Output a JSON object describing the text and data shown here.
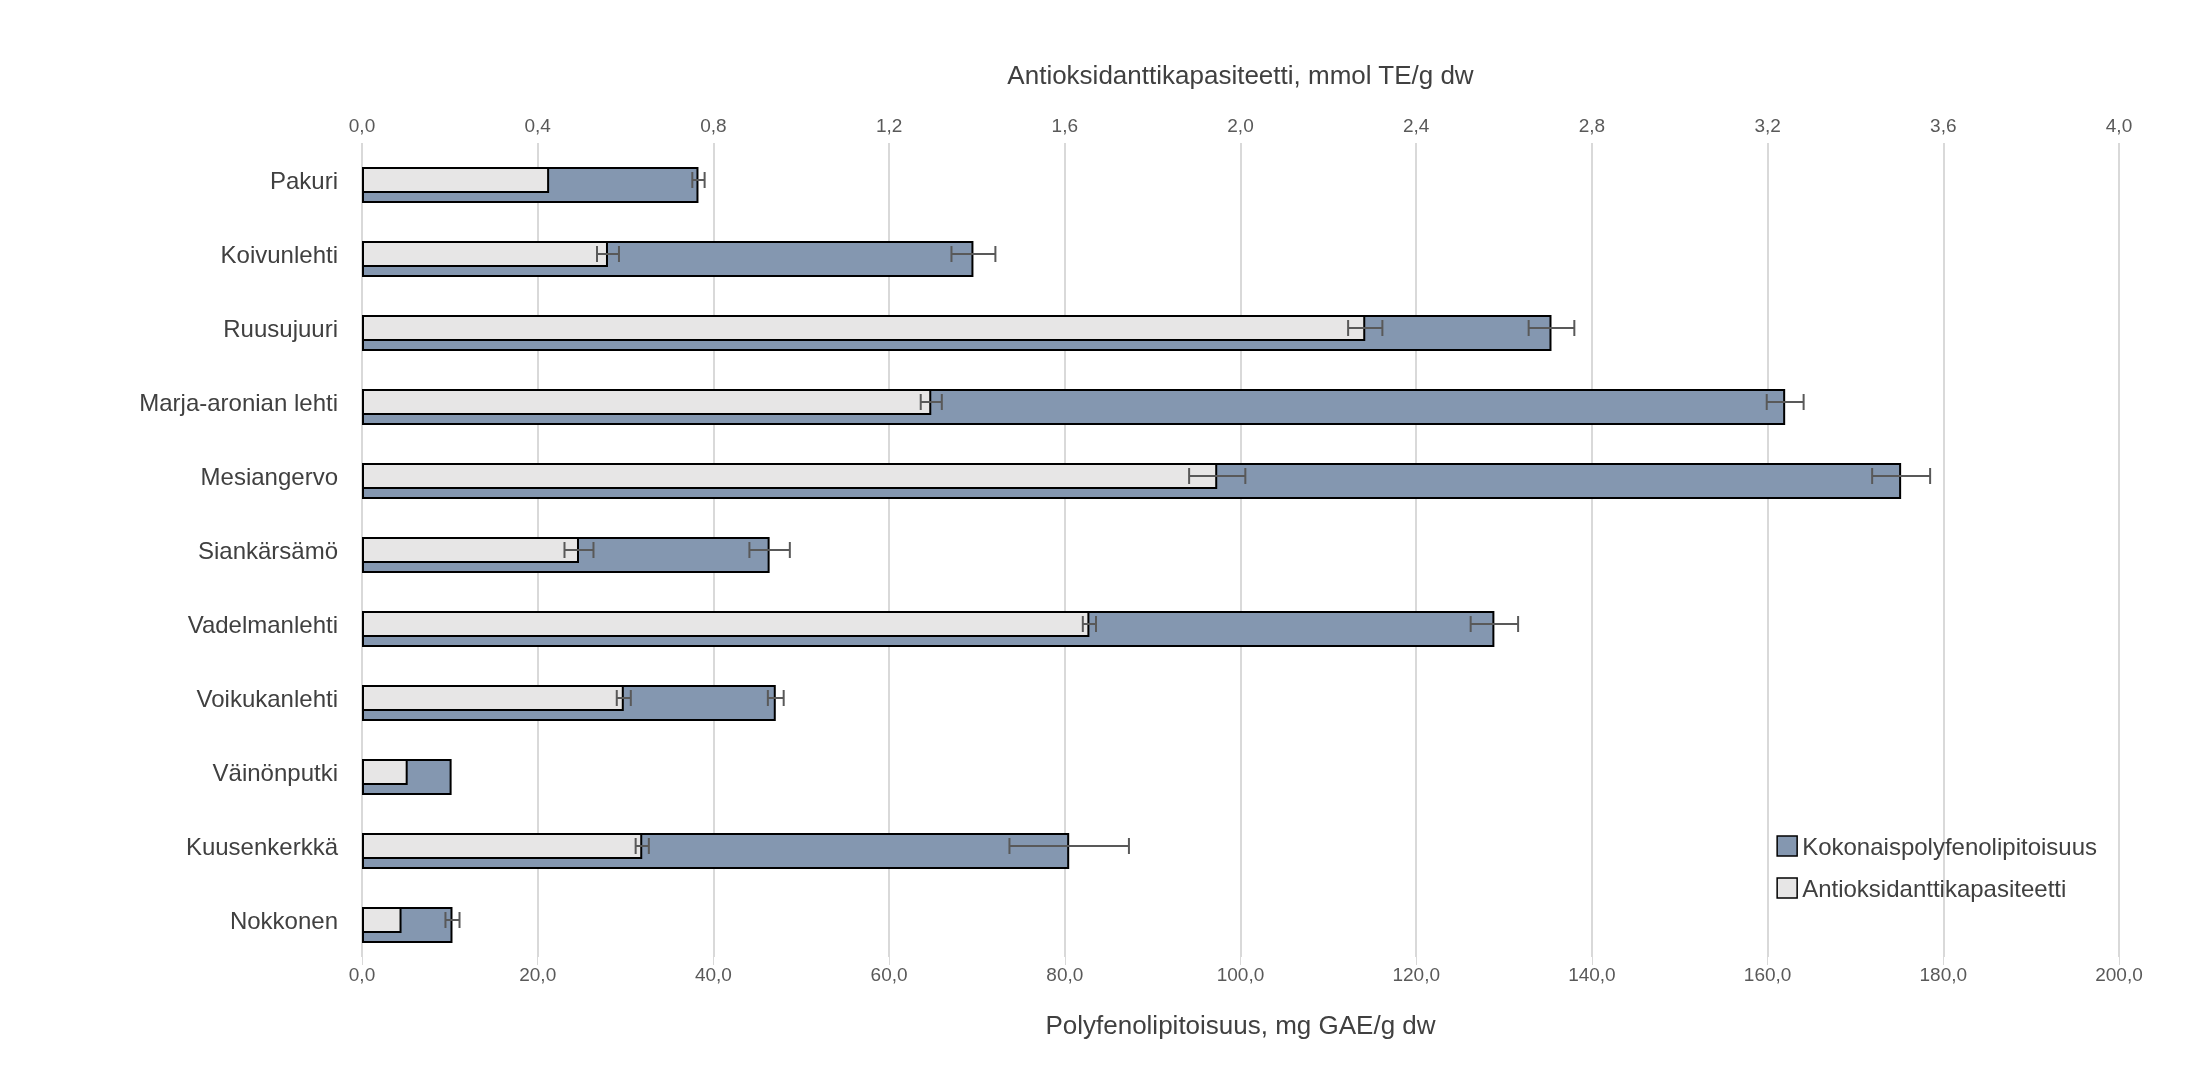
{
  "chart_data": {
    "type": "bar",
    "orientation": "horizontal",
    "xlabel": "Polyfenolipitoisuus, mg GAE/g dw",
    "x2label": "Antioksidanttikapasiteetti, mmol TE/g dw",
    "categories": [
      "Pakuri",
      "Koivunlehti",
      "Ruusujuuri",
      "Marja-aronian lehti",
      "Mesiangervo",
      "Siankärsämö",
      "Vadelmanlehti",
      "Voikukanlehti",
      "Väinönputki",
      "Kuusenkerkkä",
      "Nokkonen"
    ],
    "series": [
      {
        "name": "Kokonaispolyfenolipitoisuus",
        "color": "#8497b0",
        "values": [
          38.3,
          69.6,
          135.4,
          162.0,
          175.2,
          46.4,
          128.9,
          47.1,
          10.2,
          80.5,
          10.3
        ],
        "errors": [
          0.7,
          2.5,
          2.6,
          2.1,
          3.3,
          2.3,
          2.7,
          0.9,
          null,
          6.8,
          0.8
        ]
      },
      {
        "name": "Antioksidanttikapasiteetti",
        "color": "#e7e6e6",
        "axis": "x2",
        "values": [
          0.426,
          0.56,
          2.284,
          1.296,
          1.947,
          0.494,
          1.656,
          0.596,
          0.104,
          0.638,
          0.09
        ],
        "errors": [
          null,
          0.025,
          0.039,
          0.024,
          0.064,
          0.033,
          0.015,
          0.016,
          null,
          0.015,
          null
        ]
      }
    ],
    "xlim": [
      0,
      200
    ],
    "xticks": [
      {
        "value": 0,
        "label": "0,0"
      },
      {
        "value": 20,
        "label": "20,0"
      },
      {
        "value": 40,
        "label": "40,0"
      },
      {
        "value": 60,
        "label": "60,0"
      },
      {
        "value": 80,
        "label": "80,0"
      },
      {
        "value": 100,
        "label": "100,0"
      },
      {
        "value": 120,
        "label": "120,0"
      },
      {
        "value": 140,
        "label": "140,0"
      },
      {
        "value": 160,
        "label": "160,0"
      },
      {
        "value": 180,
        "label": "180,0"
      },
      {
        "value": 200,
        "label": "200,0"
      }
    ],
    "x2lim": [
      0,
      4
    ],
    "x2ticks": [
      {
        "value": 0,
        "label": "0,0"
      },
      {
        "value": 0.4,
        "label": "0,4"
      },
      {
        "value": 0.8,
        "label": "0,8"
      },
      {
        "value": 1.2,
        "label": "1,2"
      },
      {
        "value": 1.6,
        "label": "1,6"
      },
      {
        "value": 2.0,
        "label": "2,0"
      },
      {
        "value": 2.4,
        "label": "2,4"
      },
      {
        "value": 2.8,
        "label": "2,8"
      },
      {
        "value": 3.2,
        "label": "3,2"
      },
      {
        "value": 3.6,
        "label": "3,6"
      },
      {
        "value": 4.0,
        "label": "4,0"
      }
    ],
    "grid": "x",
    "legend": "bottom right"
  }
}
